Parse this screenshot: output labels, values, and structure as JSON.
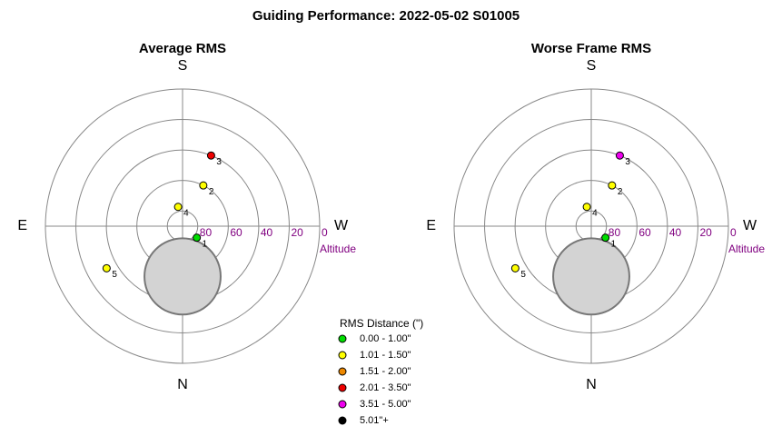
{
  "title": "Guiding Performance: 2022-05-02 S01005",
  "chart_data": [
    {
      "type": "polar",
      "title": "Average RMS",
      "directions": {
        "top": "S",
        "bottom": "N",
        "left": "E",
        "right": "W"
      },
      "radial_label": "Altitude",
      "rlim": [
        90,
        0
      ],
      "rticks": [
        80,
        60,
        40,
        20,
        0
      ],
      "moon": {
        "azimuth": 0,
        "altitude": 57,
        "radius": 25
      },
      "points": {
        "labels": [
          "1",
          "2",
          "3",
          "4",
          "5"
        ],
        "azimuth": [
          309,
          207,
          202,
          167,
          61
        ],
        "altitude": [
          78,
          60,
          40,
          77,
          33
        ],
        "colors": [
          "#00dd00",
          "#ffff00",
          "#ee0000",
          "#ffff00",
          "#ffff00"
        ]
      }
    },
    {
      "type": "polar",
      "title": "Worse Frame RMS",
      "directions": {
        "top": "S",
        "bottom": "N",
        "left": "E",
        "right": "W"
      },
      "radial_label": "Altitude",
      "rlim": [
        90,
        0
      ],
      "rticks": [
        80,
        60,
        40,
        20,
        0
      ],
      "moon": {
        "azimuth": 0,
        "altitude": 57,
        "radius": 25
      },
      "points": {
        "labels": [
          "1",
          "2",
          "3",
          "4",
          "5"
        ],
        "azimuth": [
          309,
          207,
          202,
          167,
          61
        ],
        "altitude": [
          78,
          60,
          40,
          77,
          33
        ],
        "colors": [
          "#00dd00",
          "#ffff00",
          "#ee00ee",
          "#ffff00",
          "#ffff00"
        ]
      }
    }
  ],
  "legend": {
    "title": "RMS Distance (\")",
    "entries": [
      {
        "label": "0.00 - 1.00\"",
        "color": "#00dd00"
      },
      {
        "label": "1.01 - 1.50\"",
        "color": "#ffff00"
      },
      {
        "label": "1.51 - 2.00\"",
        "color": "#ee8800"
      },
      {
        "label": "2.01 - 3.50\"",
        "color": "#ee0000"
      },
      {
        "label": "3.51 - 5.00\"",
        "color": "#ee00ee"
      },
      {
        "label": "5.01\"+",
        "color": "#000000"
      }
    ]
  }
}
